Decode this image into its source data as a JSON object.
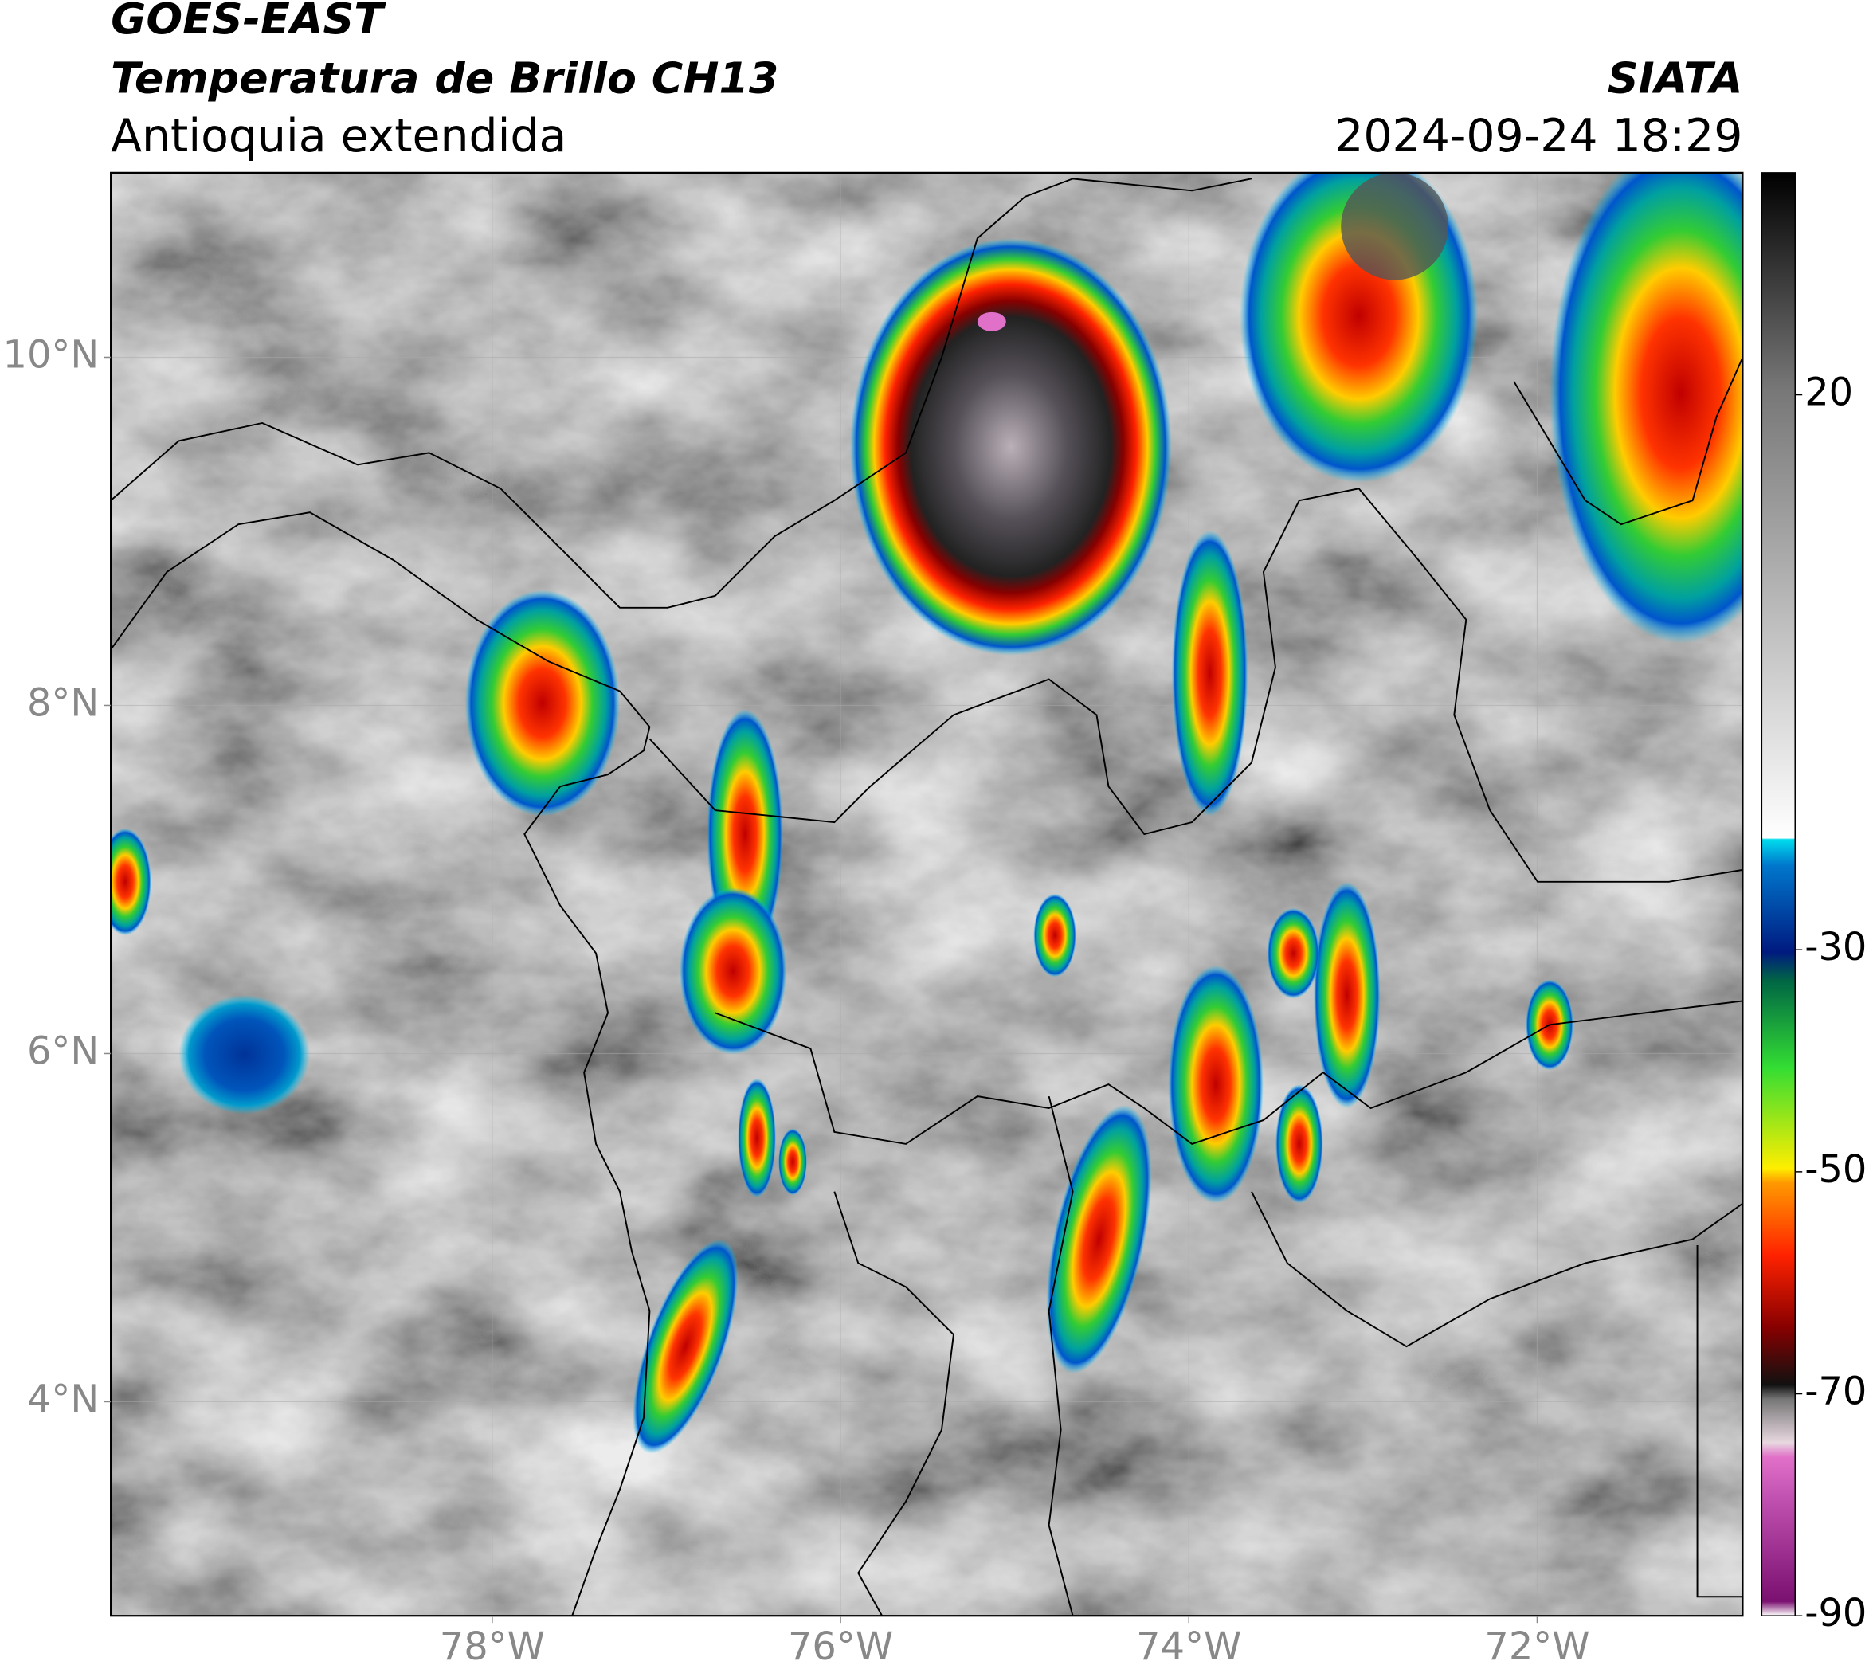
{
  "header": {
    "satellite": "GOES-EAST",
    "product": "Temperatura de Brillo CH13",
    "region": "Antioquia extendida",
    "source": "SIATA",
    "datetime": "2024-09-24 18:29"
  },
  "map": {
    "xlim": [
      -80.19,
      -70.82
    ],
    "ylim": [
      2.77,
      11.06
    ],
    "xticks": [
      {
        "value": -78,
        "label": "78°W"
      },
      {
        "value": -76,
        "label": "76°W"
      },
      {
        "value": -74,
        "label": "74°W"
      },
      {
        "value": -72,
        "label": "72°W"
      }
    ],
    "yticks": [
      {
        "value": 10,
        "label": "10°N"
      },
      {
        "value": 8,
        "label": "8°N"
      },
      {
        "value": 6,
        "label": "6°N"
      },
      {
        "value": 4,
        "label": "4°N"
      }
    ],
    "grid": true
  },
  "colorbar": {
    "lim": [
      -90,
      40
    ],
    "ticks": [
      20,
      -30,
      -50,
      -70,
      -90
    ]
  }
}
